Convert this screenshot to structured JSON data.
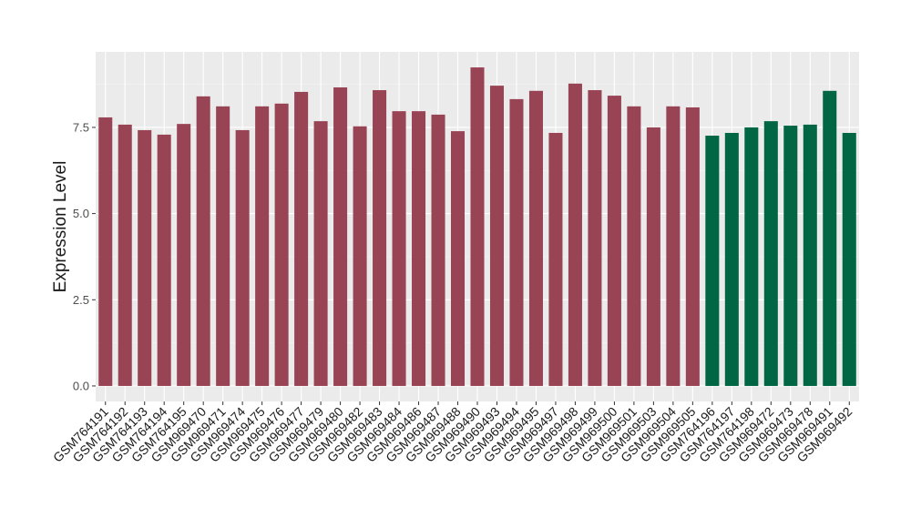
{
  "chart_data": {
    "type": "bar",
    "y_label": "Expression Level",
    "categories": [
      "GSM764191",
      "GSM764192",
      "GSM764193",
      "GSM764194",
      "GSM764195",
      "GSM969470",
      "GSM969471",
      "GSM969474",
      "GSM969475",
      "GSM969476",
      "GSM969477",
      "GSM969479",
      "GSM969480",
      "GSM969482",
      "GSM969483",
      "GSM969484",
      "GSM969486",
      "GSM969487",
      "GSM969488",
      "GSM969490",
      "GSM969493",
      "GSM969494",
      "GSM969495",
      "GSM969497",
      "GSM969498",
      "GSM969499",
      "GSM969500",
      "GSM969501",
      "GSM969503",
      "GSM969504",
      "GSM969505",
      "GSM764196",
      "GSM764197",
      "GSM764198",
      "GSM969472",
      "GSM969473",
      "GSM969478",
      "GSM969491",
      "GSM969492"
    ],
    "values": [
      7.79,
      7.58,
      7.42,
      7.29,
      7.6,
      8.4,
      8.11,
      7.42,
      8.11,
      8.19,
      8.53,
      7.68,
      8.66,
      7.53,
      8.58,
      7.97,
      7.97,
      7.87,
      7.39,
      9.24,
      8.71,
      8.32,
      8.56,
      7.34,
      8.77,
      8.58,
      8.42,
      8.11,
      7.5,
      8.11,
      8.08,
      7.26,
      7.34,
      7.5,
      7.68,
      7.55,
      7.58,
      8.56,
      7.34
    ],
    "bar_colors": [
      "#994455",
      "#994455",
      "#994455",
      "#994455",
      "#994455",
      "#994455",
      "#994455",
      "#994455",
      "#994455",
      "#994455",
      "#994455",
      "#994455",
      "#994455",
      "#994455",
      "#994455",
      "#994455",
      "#994455",
      "#994455",
      "#994455",
      "#994455",
      "#994455",
      "#994455",
      "#994455",
      "#994455",
      "#994455",
      "#994455",
      "#994455",
      "#994455",
      "#994455",
      "#994455",
      "#994455",
      "#006644",
      "#006644",
      "#006644",
      "#006644",
      "#006644",
      "#006644",
      "#006644",
      "#006644"
    ],
    "ylim": [
      -0.45,
      9.69
    ],
    "yticks": [
      {
        "value": 0,
        "label": "0.0"
      },
      2.5,
      {
        "value": 5,
        "label": "5.0"
      },
      7.5
    ],
    "grid": true
  }
}
